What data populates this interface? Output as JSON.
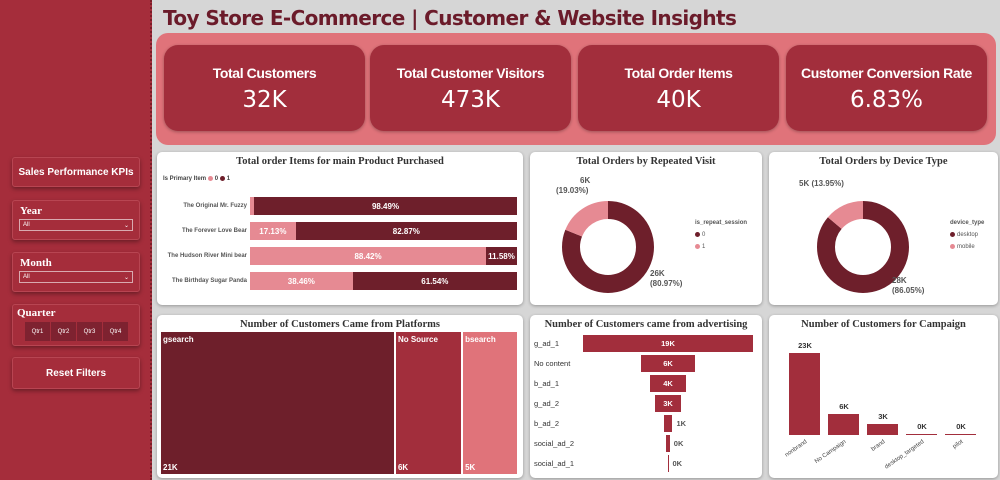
{
  "title": "Toy Store E-Commerce | Customer & Website Insights",
  "sidebar": {
    "kpi_button": "Sales Performance KPIs",
    "year": {
      "label": "Year",
      "value": "All"
    },
    "month": {
      "label": "Month",
      "value": "All"
    },
    "quarter": {
      "label": "Quarter",
      "options": [
        "Qtr1",
        "Qtr2",
        "Qtr3",
        "Qtr4"
      ]
    },
    "reset_button": "Reset Filters"
  },
  "kpis": [
    {
      "label": "Total Customers",
      "value": "32K"
    },
    {
      "label": "Total Customer Visitors",
      "value": "473K"
    },
    {
      "label": "Total Order Items",
      "value": "40K"
    },
    {
      "label": "Customer Conversion Rate",
      "value": "6.83%"
    }
  ],
  "colors": {
    "dark": "#6e1f2b",
    "mid": "#a22e3c",
    "pink": "#e68a93",
    "light": "#e0737a"
  },
  "chart_data": [
    {
      "type": "bar",
      "stacked": "100%",
      "orientation": "horizontal",
      "title": "Total order Items for main Product Purchased",
      "legend_title": "Is Primary Item",
      "legend": [
        "0",
        "1"
      ],
      "categories": [
        "The Original Mr. Fuzzy",
        "The Forever Love Bear",
        "The Hudson River Mini bear",
        "The Birthday Sugar Panda"
      ],
      "series": [
        {
          "name": "0",
          "values": [
            1.51,
            17.13,
            88.42,
            38.46
          ],
          "labels": [
            "",
            "17.13%",
            "88.42%",
            "38.46%"
          ]
        },
        {
          "name": "1",
          "values": [
            98.49,
            82.87,
            11.58,
            61.54
          ],
          "labels": [
            "98.49%",
            "82.87%",
            "11.58%",
            "61.54%"
          ]
        }
      ]
    },
    {
      "type": "pie",
      "donut": true,
      "title": "Total Orders by Repeated Visit",
      "legend_title": "is_repeat_session",
      "slices": [
        {
          "name": "0",
          "value": 80.97,
          "label": "26K",
          "pct": "(80.97%)"
        },
        {
          "name": "1",
          "value": 19.03,
          "label": "6K",
          "pct": "(19.03%)"
        }
      ]
    },
    {
      "type": "pie",
      "donut": true,
      "title": "Total Orders by Device Type",
      "legend_title": "device_type",
      "slices": [
        {
          "name": "desktop",
          "value": 86.05,
          "label": "28K",
          "pct": "(86.05%)"
        },
        {
          "name": "mobile",
          "value": 13.95,
          "label": "5K",
          "pct": "(13.95%)"
        }
      ]
    },
    {
      "type": "treemap",
      "title": "Number of Customers Came from Platforms",
      "items": [
        {
          "name": "gsearch",
          "value": 21,
          "label": "21K"
        },
        {
          "name": "No Source",
          "value": 6,
          "label": "6K"
        },
        {
          "name": "bsearch",
          "value": 5,
          "label": "5K"
        }
      ]
    },
    {
      "type": "funnel",
      "title": "Number of Customers came from advertising",
      "categories": [
        "g_ad_1",
        "No content",
        "b_ad_1",
        "g_ad_2",
        "b_ad_2",
        "social_ad_2",
        "social_ad_1"
      ],
      "values": [
        19,
        6,
        4,
        3,
        1,
        0.4,
        0.1
      ],
      "labels": [
        "19K",
        "6K",
        "4K",
        "3K",
        "1K",
        "0K",
        "0K"
      ]
    },
    {
      "type": "bar",
      "title": "Number of Customers for Campaign",
      "categories": [
        "nonbrand",
        "No Campaign",
        "brand",
        "desktop_targeted",
        "pilot"
      ],
      "values": [
        23,
        6,
        3,
        0.2,
        0.05
      ],
      "labels": [
        "23K",
        "6K",
        "3K",
        "0K",
        "0K"
      ]
    }
  ]
}
